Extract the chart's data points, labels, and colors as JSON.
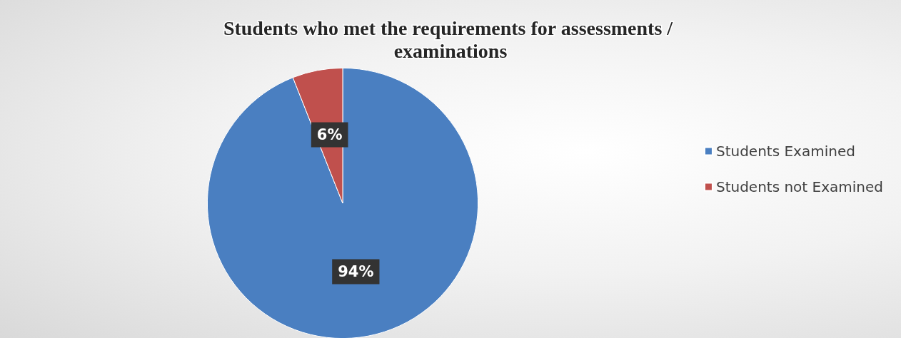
{
  "chart_data": {
    "type": "pie",
    "title": "Students who met the requirements for assessments / examinations",
    "categories": [
      "Students Examined",
      "Students not Examined"
    ],
    "values": [
      94,
      6
    ],
    "colors": [
      "#4a7fc1",
      "#c0504d"
    ],
    "value_labels": [
      "94%",
      "6%"
    ],
    "legend": "right"
  }
}
